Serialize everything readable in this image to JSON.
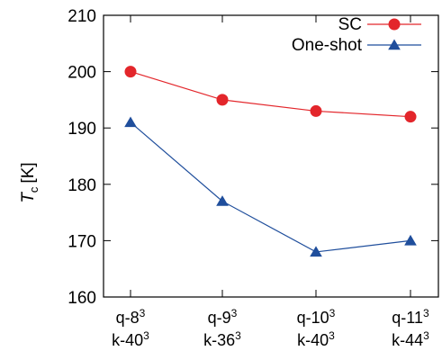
{
  "chart_data": {
    "type": "line",
    "ylabel": "T_c [K]",
    "ylabel_main": "T",
    "ylabel_sub": "c",
    "ylabel_unit": "[K]",
    "ylim": [
      160,
      210
    ],
    "yticks": [
      160,
      170,
      180,
      190,
      200,
      210
    ],
    "grid": false,
    "legend_position": "top-right",
    "categories": [
      {
        "q": "q-8",
        "q_exp": "3",
        "k": "k-40",
        "k_exp": "3"
      },
      {
        "q": "q-9",
        "q_exp": "3",
        "k": "k-36",
        "k_exp": "3"
      },
      {
        "q": "q-10",
        "q_exp": "3",
        "k": "k-40",
        "k_exp": "3"
      },
      {
        "q": "q-11",
        "q_exp": "3",
        "k": "k-44",
        "k_exp": "3"
      }
    ],
    "series": [
      {
        "name": "SC",
        "color": "#e3262b",
        "marker": "circle",
        "values": [
          200,
          195,
          193,
          192
        ]
      },
      {
        "name": "One-shot",
        "color": "#1f4e9c",
        "marker": "triangle",
        "values": [
          191,
          177,
          168,
          170
        ]
      }
    ]
  }
}
